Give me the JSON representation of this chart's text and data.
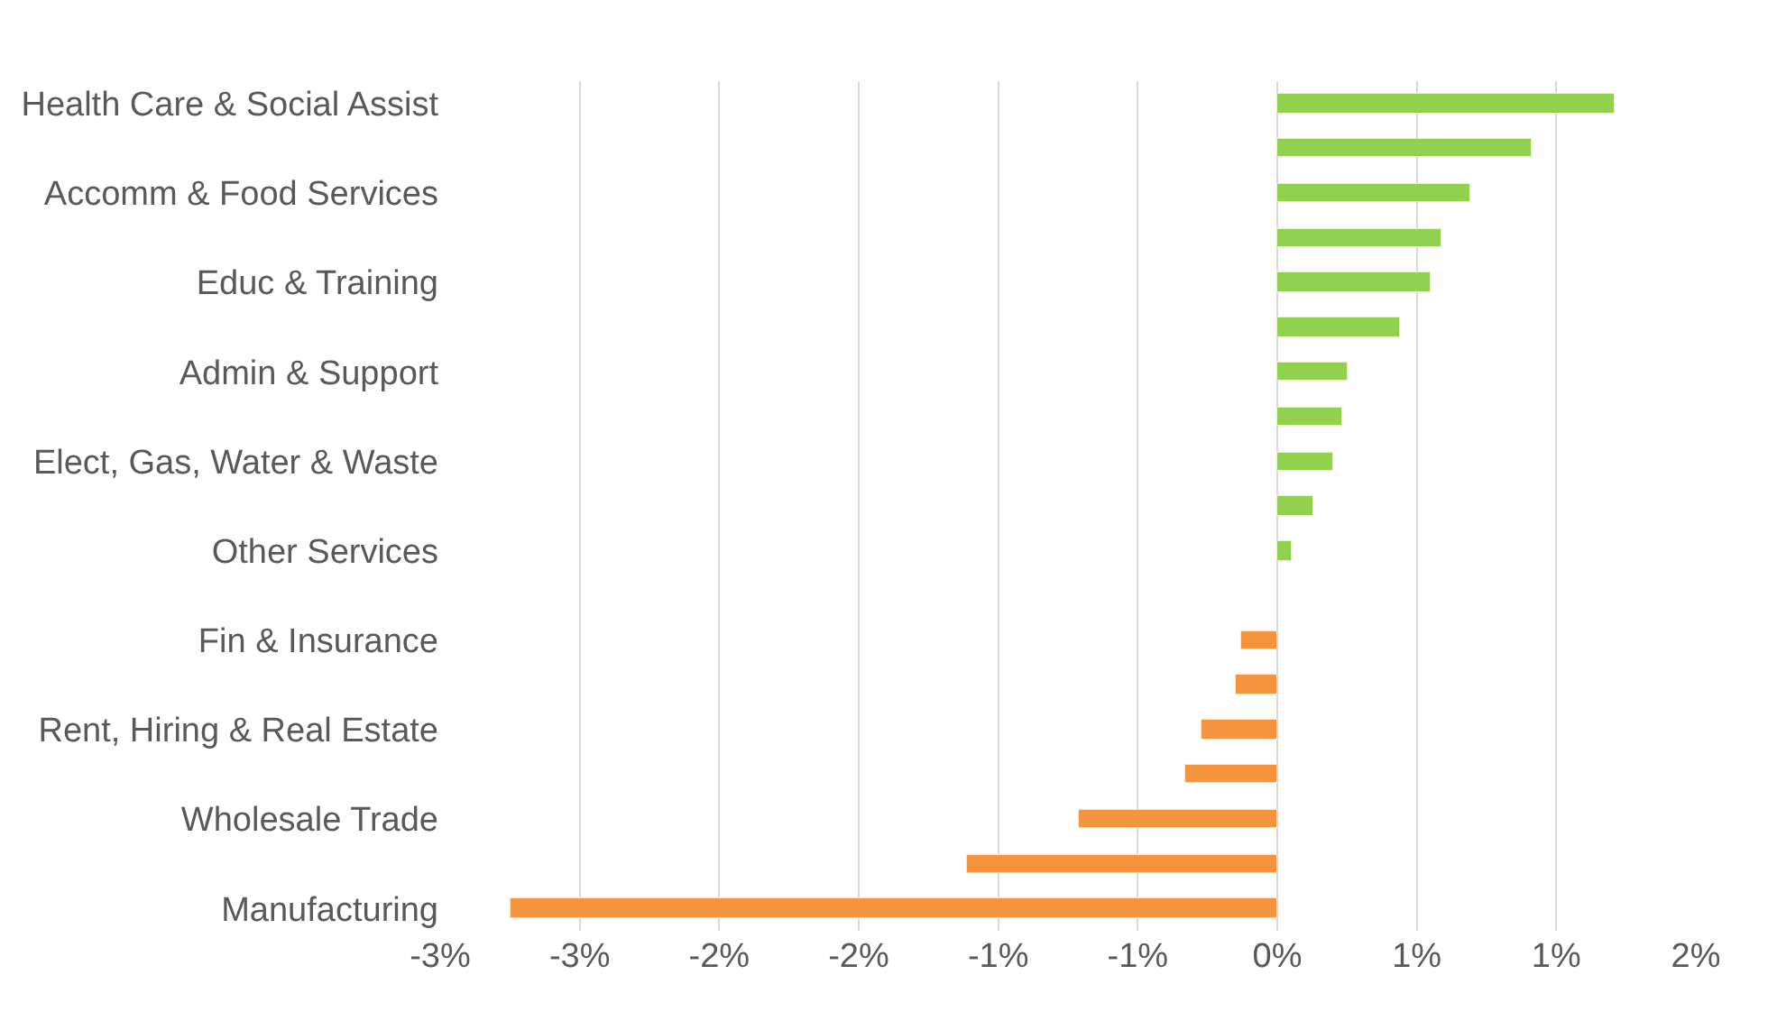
{
  "chart_data": {
    "type": "bar",
    "orientation": "horizontal",
    "categories": [
      "Health Care & Social Assist",
      null,
      "Accomm & Food Services",
      null,
      "Educ & Training",
      null,
      "Admin & Support",
      null,
      "Elect, Gas, Water & Waste",
      null,
      "Other Services",
      null,
      "Fin & Insurance",
      null,
      "Rent, Hiring & Real Estate",
      null,
      "Wholesale Trade",
      null,
      "Manufacturing"
    ],
    "values": [
      1.21,
      0.91,
      0.69,
      0.59,
      0.55,
      0.44,
      0.25,
      0.23,
      0.2,
      0.13,
      0.05,
      null,
      -0.13,
      -0.15,
      -0.27,
      -0.33,
      -0.71,
      -1.11,
      -2.75
    ],
    "colors": [
      "#92d050",
      "#92d050",
      "#92d050",
      "#92d050",
      "#92d050",
      "#92d050",
      "#92d050",
      "#92d050",
      "#92d050",
      "#92d050",
      "#92d050",
      null,
      "#f4943f",
      "#f4943f",
      "#f4943f",
      "#f4943f",
      "#f4943f",
      "#f4943f",
      "#f4943f"
    ],
    "xlim": [
      -3.0,
      1.5
    ],
    "xticks": [
      {
        "value": -3.0,
        "label": "-3%"
      },
      {
        "value": -2.5,
        "label": "-3%"
      },
      {
        "value": -2.0,
        "label": "-2%"
      },
      {
        "value": -1.5,
        "label": "-2%"
      },
      {
        "value": -1.0,
        "label": "-1%"
      },
      {
        "value": -0.5,
        "label": "-1%"
      },
      {
        "value": 0,
        "label": "0%"
      },
      {
        "value": 0.5,
        "label": "1%"
      },
      {
        "value": 1.0,
        "label": "1%"
      },
      {
        "value": 1.5,
        "label": "2%"
      }
    ],
    "grid": "x",
    "legend": false
  }
}
